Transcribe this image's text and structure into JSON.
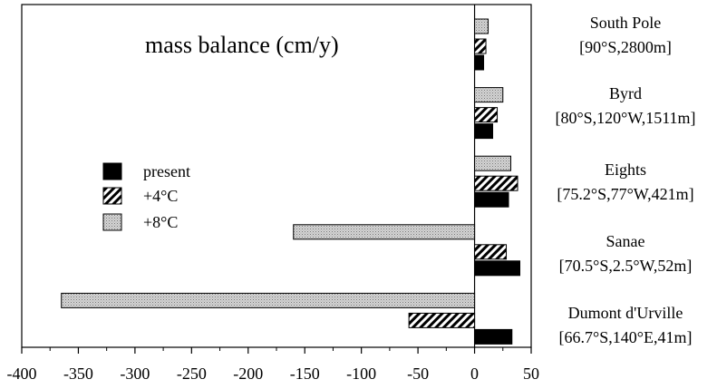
{
  "chart_data": {
    "type": "bar",
    "orientation": "horizontal",
    "title": "mass balance (cm/y)",
    "xlim": [
      -400,
      50
    ],
    "x_ticks": [
      "-400",
      "-350",
      "-300",
      "-250",
      "-200",
      "-150",
      "-100",
      "-50",
      "0",
      "50"
    ],
    "categories": [
      {
        "name": "South Pole",
        "coords": "[90°S,2800m]"
      },
      {
        "name": "Byrd",
        "coords": "[80°S,120°W,1511m]"
      },
      {
        "name": "Eights",
        "coords": "[75.2°S,77°W,421m]"
      },
      {
        "name": "Sanae",
        "coords": "[70.5°S,2.5°W,52m]"
      },
      {
        "name": "Dumont d'Urville",
        "coords": "[66.7°S,140°E,41m]"
      }
    ],
    "series": [
      {
        "name": "present",
        "pattern": "solid",
        "color": "#000000",
        "values": [
          8,
          16,
          30,
          40,
          33
        ]
      },
      {
        "name": "+4°C",
        "pattern": "hatched",
        "color": "#000000",
        "values": [
          10,
          20,
          38,
          28,
          -58
        ]
      },
      {
        "name": "+8°C",
        "pattern": "dotted",
        "color": "#b8b8b8",
        "values": [
          12,
          25,
          32,
          -160,
          -365
        ]
      }
    ],
    "legend_position": "left",
    "grid": false
  }
}
